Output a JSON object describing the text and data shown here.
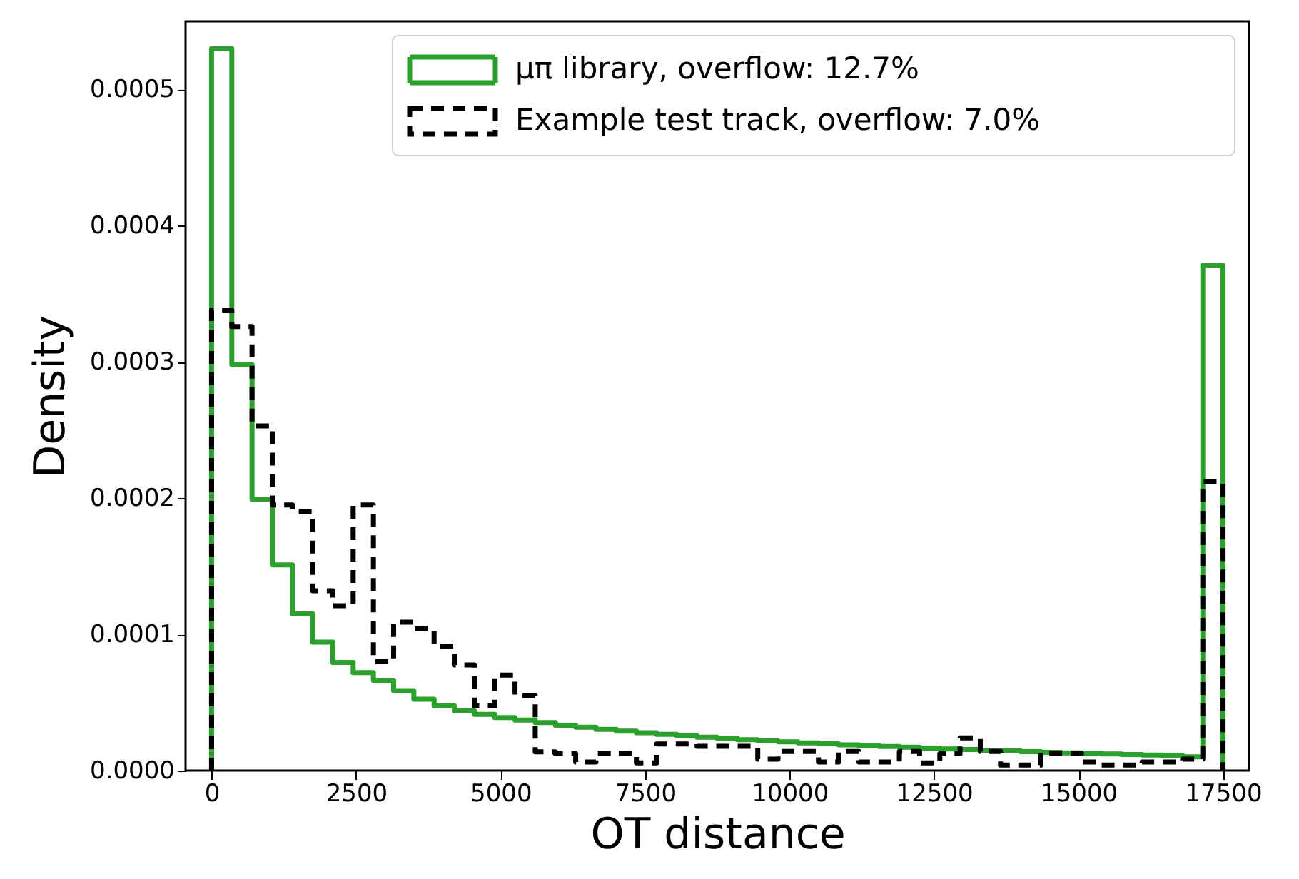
{
  "chart_data": {
    "type": "histogram",
    "xlabel": "OT distance",
    "ylabel": "Density",
    "bins": [
      0,
      350,
      700,
      1050,
      1400,
      1750,
      2100,
      2450,
      2800,
      3150,
      3500,
      3850,
      4200,
      4550,
      4900,
      5250,
      5600,
      5950,
      6300,
      6650,
      7000,
      7350,
      7700,
      8050,
      8400,
      8750,
      9100,
      9450,
      9800,
      10150,
      10500,
      10850,
      11200,
      11550,
      11900,
      12250,
      12600,
      12950,
      13300,
      13650,
      14000,
      14350,
      14700,
      15050,
      15400,
      15750,
      16100,
      16450,
      16800,
      17150,
      17500
    ],
    "series": [
      {
        "name": "μπ library, overflow: 12.7%",
        "color": "#2ca02c",
        "line_style": "solid",
        "values": [
          0.00053,
          0.000298,
          0.000199,
          0.000151,
          0.000115,
          9.43e-05,
          7.93e-05,
          7.19e-05,
          6.62e-05,
          5.87e-05,
          5.24e-05,
          4.76e-05,
          4.38e-05,
          4.12e-05,
          3.89e-05,
          3.71e-05,
          3.52e-05,
          3.33e-05,
          3.18e-05,
          3.03e-05,
          2.9e-05,
          2.78e-05,
          2.66e-05,
          2.55e-05,
          2.45e-05,
          2.36e-05,
          2.27e-05,
          2.19e-05,
          2.11e-05,
          2.03e-05,
          1.96e-05,
          1.89e-05,
          1.83e-05,
          1.77e-05,
          1.71e-05,
          1.65e-05,
          1.59e-05,
          1.54e-05,
          1.49e-05,
          1.44e-05,
          1.39e-05,
          1.34e-05,
          1.3e-05,
          1.26e-05,
          1.22e-05,
          1.18e-05,
          1.14e-05,
          1.1e-05,
          1.01e-05,
          0.000371
        ]
      },
      {
        "name": "Example test track, overflow: 7.0%",
        "color": "#000000",
        "line_style": "dashed",
        "values": [
          0.000338,
          0.000326,
          0.000253,
          0.000195,
          0.00019,
          0.000132,
          0.000121,
          0.000195,
          8e-05,
          0.000109,
          0.000104,
          9.13e-05,
          7.75e-05,
          4.76e-05,
          7e-05,
          5.5e-05,
          1.38e-05,
          1.23e-05,
          6.3e-06,
          1.23e-05,
          1.27e-05,
          5.6e-06,
          1.95e-05,
          1.95e-05,
          1.78e-05,
          1.78e-05,
          1.78e-05,
          8.4e-06,
          1.4e-05,
          1.4e-05,
          6.3e-06,
          1.4e-05,
          6.3e-06,
          6.3e-06,
          1.4e-05,
          5.6e-06,
          1.23e-05,
          2.4e-05,
          1.4e-05,
          4e-06,
          4e-06,
          1.27e-05,
          1.27e-05,
          6.3e-06,
          4e-06,
          4e-06,
          6.3e-06,
          6.3e-06,
          8.4e-06,
          0.000212
        ]
      }
    ],
    "xlim": [
      -450,
      17950
    ],
    "xticks": [
      0,
      2500,
      5000,
      7500,
      10000,
      12500,
      15000,
      17500
    ],
    "ylim": [
      0,
      0.00055
    ],
    "yticks": [
      {
        "value": 0,
        "label": "0.0000"
      },
      {
        "value": 0.0001,
        "label": "0.0001"
      },
      {
        "value": 0.0002,
        "label": "0.0002"
      },
      {
        "value": 0.0003,
        "label": "0.0003"
      },
      {
        "value": 0.0004,
        "label": "0.0004"
      },
      {
        "value": 0.0005,
        "label": "0.0005"
      }
    ],
    "legend": "top right",
    "grid": false
  }
}
